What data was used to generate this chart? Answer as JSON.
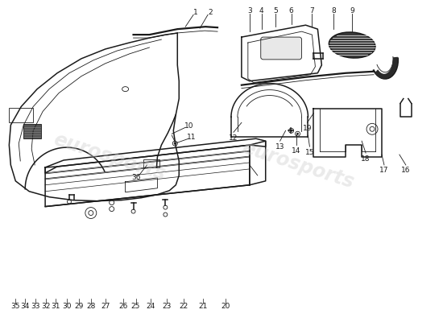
{
  "background_color": "#ffffff",
  "line_color": "#1a1a1a",
  "watermark_color": "#cccccc",
  "lw_main": 1.1,
  "lw_thin": 0.6,
  "lw_thick": 1.6,
  "part_labels_bottom": [
    "35",
    "34",
    "33",
    "32",
    "31",
    "30",
    "29",
    "28",
    "27",
    "26",
    "25",
    "24",
    "23",
    "22",
    "21",
    "20"
  ],
  "part_labels_bottom_x": [
    18,
    30,
    43,
    56,
    68,
    82,
    97,
    112,
    130,
    152,
    168,
    187,
    207,
    228,
    252,
    280
  ],
  "part_labels_top_right": [
    "3",
    "4",
    "5",
    "6",
    "7",
    "8",
    "9"
  ],
  "part_labels_mid_right": [
    "12",
    "13",
    "14",
    "15",
    "16",
    "17",
    "18",
    "19"
  ],
  "part_labels_left": [
    "1",
    "2",
    "10",
    "11",
    "36"
  ]
}
